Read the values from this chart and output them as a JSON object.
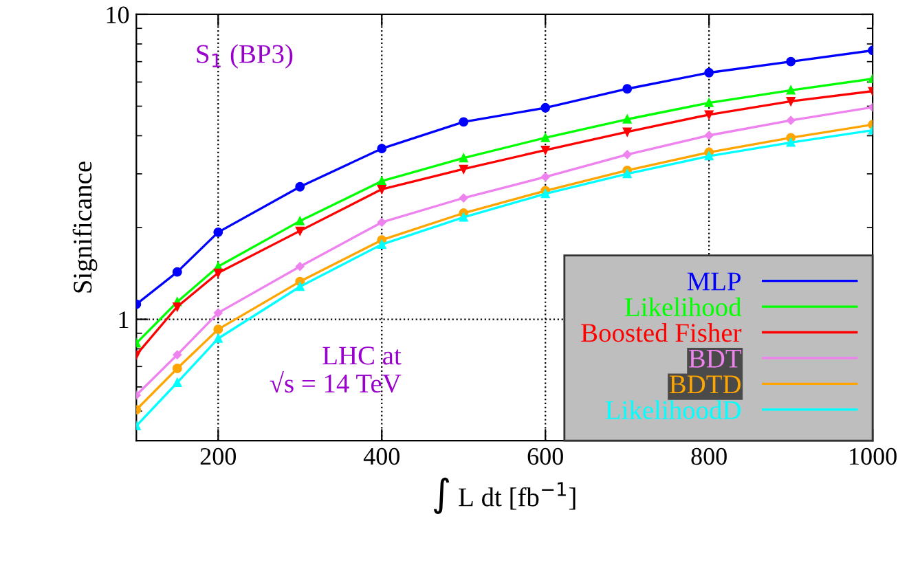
{
  "chart_data": {
    "type": "line",
    "xlabel": "∫ L dt [fb$^{−1}$]",
    "ylabel": "Significance",
    "log": "y",
    "grid": true,
    "legend": "bottom right",
    "line_style": "solid",
    "xlim": [
      100,
      1000
    ],
    "xticks": [
      200,
      400,
      600,
      800,
      1000
    ],
    "ylim": [
      0.4,
      10
    ],
    "yticks": [
      1,
      10
    ],
    "x": [
      100,
      150,
      200,
      300,
      400,
      500,
      600,
      700,
      800,
      900,
      1000
    ],
    "annotations": [
      "S$_{1}$ (BP3)",
      "LHC at\n√s = 14 TeV"
    ],
    "series": [
      {
        "name": "MLP",
        "color": "#0000ff",
        "marker": "circle",
        "values": [
          1.12,
          1.43,
          1.93,
          2.72,
          3.63,
          4.44,
          4.94,
          5.7,
          6.44,
          7.0,
          7.62
        ]
      },
      {
        "name": "Likelihood",
        "color": "#00ff00",
        "marker": "triangle",
        "values": [
          0.835,
          1.14,
          1.49,
          2.1,
          2.84,
          3.38,
          3.94,
          4.53,
          5.13,
          5.64,
          6.15
        ]
      },
      {
        "name": "Boosted Fisher",
        "color": "#ff0000",
        "marker": "triangle_down",
        "values": [
          0.765,
          1.1,
          1.42,
          1.95,
          2.67,
          3.11,
          3.59,
          4.12,
          4.69,
          5.19,
          5.6
        ]
      },
      {
        "name": "BDT",
        "color": "#ee82ee",
        "marker": "diamond",
        "values": [
          0.564,
          0.765,
          1.05,
          1.49,
          2.08,
          2.5,
          2.93,
          3.47,
          4.01,
          4.49,
          4.96
        ]
      },
      {
        "name": "BDTD",
        "color": "#ffa500",
        "marker": "circle",
        "values": [
          0.505,
          0.69,
          0.927,
          1.33,
          1.82,
          2.23,
          2.64,
          3.08,
          3.53,
          3.94,
          4.35
        ]
      },
      {
        "name": "LikelihoodD",
        "color": "#00ffff",
        "marker": "triangle",
        "values": [
          0.447,
          0.62,
          0.865,
          1.28,
          1.76,
          2.16,
          2.58,
          3.0,
          3.43,
          3.8,
          4.17
        ]
      }
    ]
  }
}
